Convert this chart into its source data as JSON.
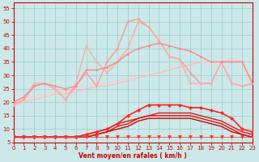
{
  "xlabel": "Vent moyen/en rafales ( km/h )",
  "xlim": [
    0,
    23
  ],
  "ylim": [
    5,
    57
  ],
  "yticks": [
    5,
    10,
    15,
    20,
    25,
    30,
    35,
    40,
    45,
    50,
    55
  ],
  "xticks": [
    0,
    1,
    2,
    3,
    4,
    5,
    6,
    7,
    8,
    9,
    10,
    11,
    12,
    13,
    14,
    15,
    16,
    17,
    18,
    19,
    20,
    21,
    22,
    23
  ],
  "background_color": "#cce8e8",
  "grid_color": "#99cccc",
  "lines": [
    {
      "x": [
        0,
        1,
        2,
        3,
        4,
        5,
        6,
        7,
        8,
        9,
        10,
        11,
        12,
        13,
        14,
        15,
        16,
        17,
        18,
        19,
        20,
        21,
        22,
        23
      ],
      "y": [
        20,
        21,
        22,
        23,
        24,
        24,
        25,
        26,
        27,
        27,
        28,
        29,
        30,
        30,
        31,
        32,
        33,
        34,
        35,
        35,
        35,
        35,
        35,
        27
      ],
      "color": "#ffcccc",
      "lw": 1.0,
      "marker": null,
      "ms": 0,
      "zorder": 1
    },
    {
      "x": [
        0,
        1,
        2,
        3,
        4,
        5,
        6,
        7,
        8,
        9,
        10,
        11,
        12,
        13,
        14,
        15,
        16,
        17,
        18,
        19,
        20,
        21,
        22,
        23
      ],
      "y": [
        19,
        20,
        21,
        22,
        23,
        23,
        24,
        25,
        26,
        26,
        27,
        28,
        29,
        30,
        31,
        32,
        33,
        34,
        35,
        35,
        35,
        36,
        35,
        26
      ],
      "color": "#ffbbbb",
      "lw": 0.8,
      "marker": null,
      "ms": 0,
      "zorder": 2
    },
    {
      "x": [
        0,
        1,
        2,
        3,
        4,
        5,
        6,
        7,
        8,
        9,
        10,
        11,
        12,
        13,
        14,
        15,
        16,
        17,
        18,
        19,
        20,
        21,
        22,
        23
      ],
      "y": [
        19,
        21,
        26,
        27,
        25,
        21,
        26,
        31,
        26,
        35,
        40,
        50,
        51,
        48,
        43,
        37,
        36,
        31,
        27,
        27,
        35,
        27,
        26,
        27
      ],
      "color": "#ff9999",
      "lw": 1.0,
      "marker": "o",
      "ms": 2,
      "zorder": 3
    },
    {
      "x": [
        0,
        1,
        2,
        3,
        4,
        5,
        6,
        7,
        8,
        9,
        10,
        11,
        12,
        13,
        14,
        15,
        16,
        17,
        18,
        19,
        20,
        21,
        22,
        23
      ],
      "y": [
        19,
        21,
        27,
        27,
        25,
        21,
        27,
        41,
        35,
        31,
        35,
        40,
        50,
        48,
        43,
        37,
        36,
        27,
        27,
        27,
        35,
        27,
        26,
        27
      ],
      "color": "#ffaaaa",
      "lw": 1.0,
      "marker": "o",
      "ms": 2,
      "zorder": 4
    },
    {
      "x": [
        0,
        1,
        2,
        3,
        4,
        5,
        6,
        7,
        8,
        9,
        10,
        11,
        12,
        13,
        14,
        15,
        16,
        17,
        18,
        19,
        20,
        21,
        22,
        23
      ],
      "y": [
        20,
        22,
        26,
        27,
        26,
        25,
        26,
        32,
        32,
        33,
        35,
        38,
        40,
        41,
        42,
        41,
        40,
        39,
        37,
        35,
        35,
        35,
        35,
        27
      ],
      "color": "#ff8888",
      "lw": 1.0,
      "marker": "o",
      "ms": 2,
      "zorder": 5
    },
    {
      "x": [
        0,
        1,
        2,
        3,
        4,
        5,
        6,
        7,
        8,
        9,
        10,
        11,
        12,
        13,
        14,
        15,
        16,
        17,
        18,
        19,
        20,
        21,
        22,
        23
      ],
      "y": [
        7,
        7,
        7,
        7,
        7,
        7,
        7,
        8,
        9,
        10,
        12,
        15,
        17,
        19,
        19,
        19,
        19,
        18,
        18,
        17,
        16,
        14,
        10,
        9
      ],
      "color": "#ff2222",
      "lw": 1.2,
      "marker": "D",
      "ms": 2.5,
      "zorder": 7
    },
    {
      "x": [
        0,
        1,
        2,
        3,
        4,
        5,
        6,
        7,
        8,
        9,
        10,
        11,
        12,
        13,
        14,
        15,
        16,
        17,
        18,
        19,
        20,
        21,
        22,
        23
      ],
      "y": [
        7,
        7,
        7,
        7,
        7,
        7,
        7,
        7,
        8,
        9,
        10,
        11,
        13,
        14,
        14,
        14,
        14,
        14,
        13,
        12,
        11,
        9,
        8,
        7
      ],
      "color": "#cc0000",
      "lw": 1.0,
      "marker": null,
      "ms": 0,
      "zorder": 6
    },
    {
      "x": [
        0,
        1,
        2,
        3,
        4,
        5,
        6,
        7,
        8,
        9,
        10,
        11,
        12,
        13,
        14,
        15,
        16,
        17,
        18,
        19,
        20,
        21,
        22,
        23
      ],
      "y": [
        7,
        7,
        7,
        7,
        7,
        7,
        7,
        7,
        8,
        9,
        11,
        12,
        14,
        15,
        15,
        15,
        15,
        15,
        14,
        13,
        12,
        10,
        8,
        7
      ],
      "color": "#dd1111",
      "lw": 1.0,
      "marker": null,
      "ms": 0,
      "zorder": 6
    },
    {
      "x": [
        0,
        1,
        2,
        3,
        4,
        5,
        6,
        7,
        8,
        9,
        10,
        11,
        12,
        13,
        14,
        15,
        16,
        17,
        18,
        19,
        20,
        21,
        22,
        23
      ],
      "y": [
        7,
        7,
        7,
        7,
        7,
        7,
        7,
        8,
        9,
        10,
        12,
        13,
        14,
        15,
        16,
        16,
        16,
        16,
        15,
        14,
        13,
        11,
        9,
        8
      ],
      "color": "#ee1111",
      "lw": 1.0,
      "marker": null,
      "ms": 0,
      "zorder": 6
    },
    {
      "x": [
        0,
        1,
        2,
        3,
        4,
        5,
        6,
        7,
        8,
        9,
        10,
        11,
        12,
        13,
        14,
        15,
        16,
        17,
        18,
        19,
        20,
        21,
        22,
        23
      ],
      "y": [
        7,
        7,
        7,
        7,
        7,
        7,
        7,
        7,
        7,
        7,
        7,
        7,
        7,
        7,
        7,
        7,
        7,
        7,
        7,
        7,
        7,
        7,
        7,
        7
      ],
      "color": "#ff3333",
      "lw": 0.5,
      "marker": "v",
      "ms": 3.5,
      "zorder": 10
    }
  ]
}
